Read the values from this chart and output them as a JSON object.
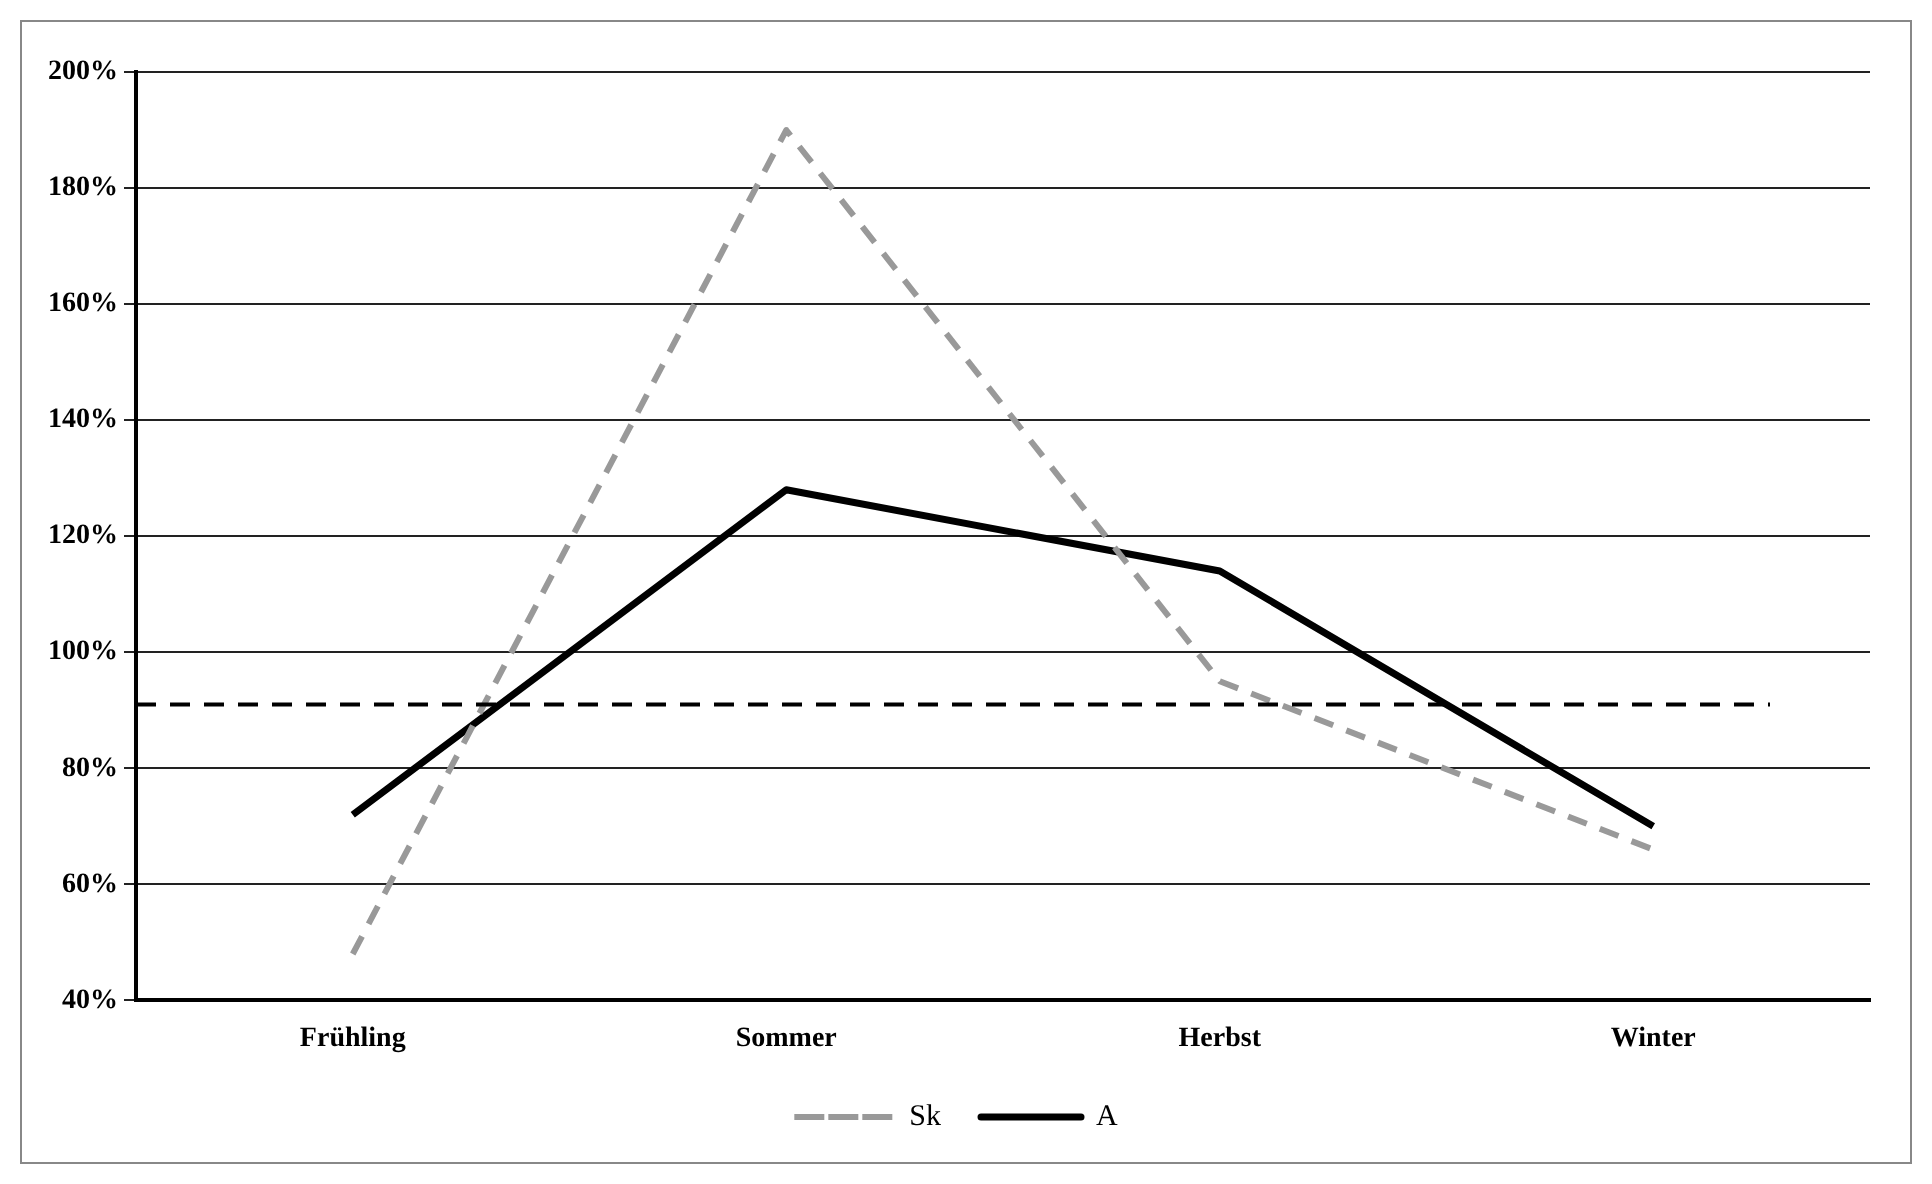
{
  "chart_data": {
    "type": "line",
    "categories": [
      "Frühling",
      "Sommer",
      "Herbst",
      "Winter"
    ],
    "series": [
      {
        "name": "Sk",
        "color": "#999999",
        "values": [
          48,
          190,
          95,
          66
        ],
        "line_style": "dashed"
      },
      {
        "name": "A",
        "color": "#000000",
        "values": [
          72,
          128,
          114,
          70
        ],
        "line_style": "solid"
      }
    ],
    "ylim": [
      40,
      200
    ],
    "yticks": [
      {
        "value": 40,
        "label": "40%"
      },
      {
        "value": 60,
        "label": "60%"
      },
      {
        "value": 80,
        "label": "80%"
      },
      {
        "value": 100,
        "label": "100%"
      },
      {
        "value": 120,
        "label": "120%"
      },
      {
        "value": 140,
        "label": "140%"
      },
      {
        "value": 160,
        "label": "160%"
      },
      {
        "value": 180,
        "label": "180%"
      },
      {
        "value": 200,
        "label": "200%"
      }
    ],
    "ref_lines": [
      {
        "axis": "y",
        "value": 91,
        "label": null,
        "color": "#000000",
        "line_style": "dashed"
      }
    ],
    "grid": "y",
    "legend": "bottom",
    "marker": "none"
  }
}
